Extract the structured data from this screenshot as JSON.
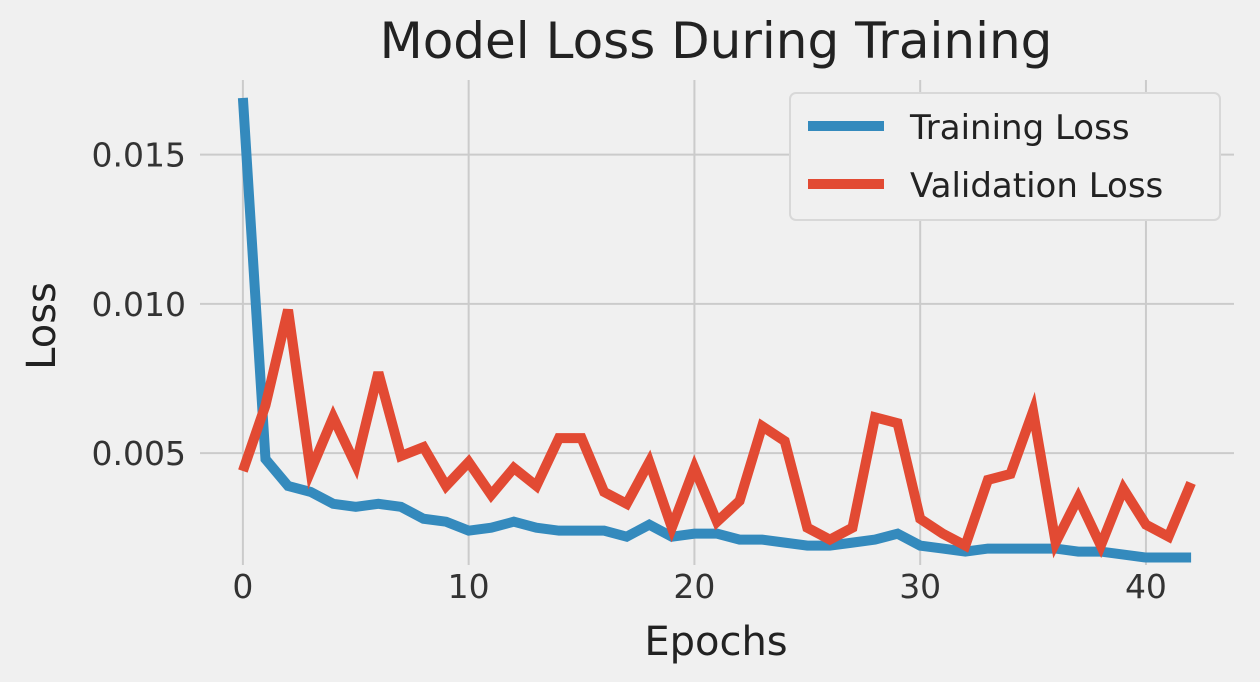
{
  "chart_data": {
    "type": "line",
    "title": "Model Loss During Training",
    "xlabel": "Epochs",
    "ylabel": "Loss",
    "xlim": [
      -1.9,
      43.9
    ],
    "ylim": [
      0.00125,
      0.0175
    ],
    "xticks": [
      0,
      10,
      20,
      30,
      40
    ],
    "xtick_labels": [
      "0",
      "10",
      "20",
      "30",
      "40"
    ],
    "yticks": [
      0.005,
      0.01,
      0.015
    ],
    "ytick_labels": [
      "0.005",
      "0.010",
      "0.015"
    ],
    "grid": true,
    "legend_position": "top-right",
    "x": [
      0,
      1,
      2,
      3,
      4,
      5,
      6,
      7,
      8,
      9,
      10,
      11,
      12,
      13,
      14,
      15,
      16,
      17,
      18,
      19,
      20,
      21,
      22,
      23,
      24,
      25,
      26,
      27,
      28,
      29,
      30,
      31,
      32,
      33,
      34,
      35,
      36,
      37,
      38,
      39,
      40,
      41,
      42
    ],
    "series": [
      {
        "name": "Training Loss",
        "color": "#348ABD",
        "values": [
          0.0169,
          0.0048,
          0.0039,
          0.0037,
          0.0033,
          0.0032,
          0.0033,
          0.0032,
          0.0028,
          0.0027,
          0.0024,
          0.0025,
          0.0027,
          0.0025,
          0.0024,
          0.0024,
          0.0024,
          0.0022,
          0.0026,
          0.0022,
          0.0023,
          0.0023,
          0.0021,
          0.0021,
          0.002,
          0.0019,
          0.0019,
          0.002,
          0.0021,
          0.0023,
          0.0019,
          0.0018,
          0.0017,
          0.0018,
          0.0018,
          0.0018,
          0.0018,
          0.0017,
          0.0017,
          0.0016,
          0.0015,
          0.0015,
          0.0015
        ]
      },
      {
        "name": "Validation Loss",
        "color": "#E24A33",
        "values": [
          0.0044,
          0.0066,
          0.0098,
          0.0044,
          0.0062,
          0.0046,
          0.0077,
          0.0049,
          0.0052,
          0.0039,
          0.0047,
          0.0036,
          0.0045,
          0.0039,
          0.0055,
          0.0055,
          0.0037,
          0.0033,
          0.0047,
          0.0025,
          0.0045,
          0.0027,
          0.0034,
          0.0059,
          0.0054,
          0.0025,
          0.0021,
          0.0025,
          0.0062,
          0.006,
          0.0028,
          0.0023,
          0.0019,
          0.0041,
          0.0043,
          0.0064,
          0.002,
          0.0035,
          0.0019,
          0.0038,
          0.0026,
          0.0022,
          0.004
        ]
      }
    ]
  }
}
